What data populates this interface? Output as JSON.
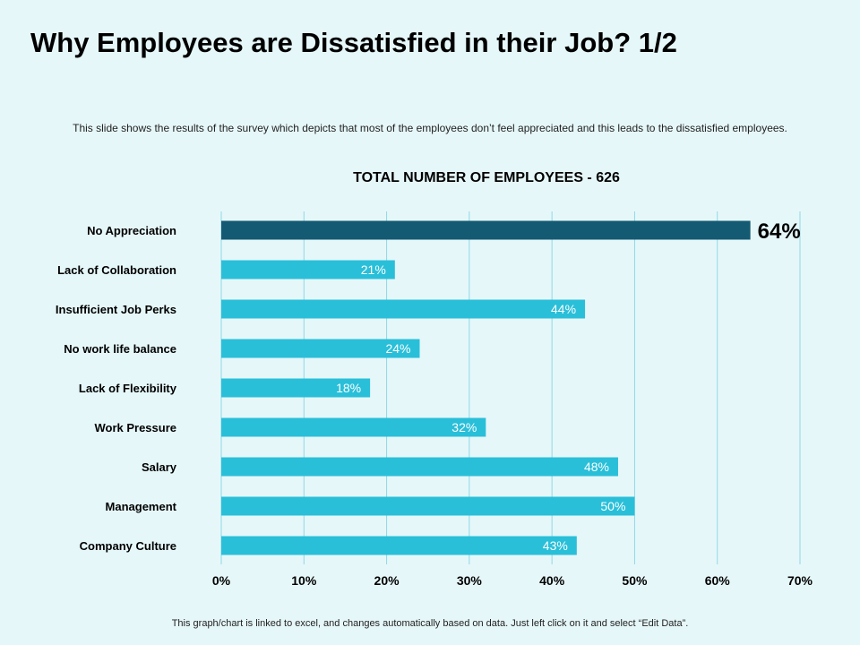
{
  "slide": {
    "title": "Why Employees are Dissatisfied in their Job? 1/2",
    "subtitle": "This slide shows the results of the survey which depicts that most of the employees don’t feel appreciated and this leads to the dissatisfied employees.",
    "footer": "This graph/chart is linked to excel, and changes automatically based on data. Just left click on it and select “Edit Data”."
  },
  "colors": {
    "background": "#e6f7f9",
    "highlight_bar": "#145a73",
    "bar": "#29bfd9",
    "grid": "#8fd8e6",
    "bar_label": "#ffffff",
    "highlight_label": "#000000"
  },
  "chart_data": {
    "type": "bar",
    "orientation": "horizontal",
    "title": "TOTAL NUMBER OF EMPLOYEES - 626",
    "categories": [
      "No Appreciation",
      "Lack of Collaboration",
      "Insufficient Job Perks",
      "No work life balance",
      "Lack of Flexibility",
      "Work Pressure",
      "Salary",
      "Management",
      "Company Culture"
    ],
    "values": [
      64,
      21,
      44,
      24,
      18,
      32,
      48,
      50,
      43
    ],
    "data_labels": [
      "64%",
      "21%",
      "44%",
      "24%",
      "18%",
      "32%",
      "48%",
      "50%",
      "43%"
    ],
    "highlight_index": 0,
    "xlim": [
      0,
      70
    ],
    "x_ticks": [
      0,
      10,
      20,
      30,
      40,
      50,
      60,
      70
    ],
    "x_tick_labels": [
      "0%",
      "10%",
      "20%",
      "30%",
      "40%",
      "50%",
      "60%",
      "70%"
    ],
    "grid": true,
    "xlabel": "",
    "ylabel": ""
  }
}
